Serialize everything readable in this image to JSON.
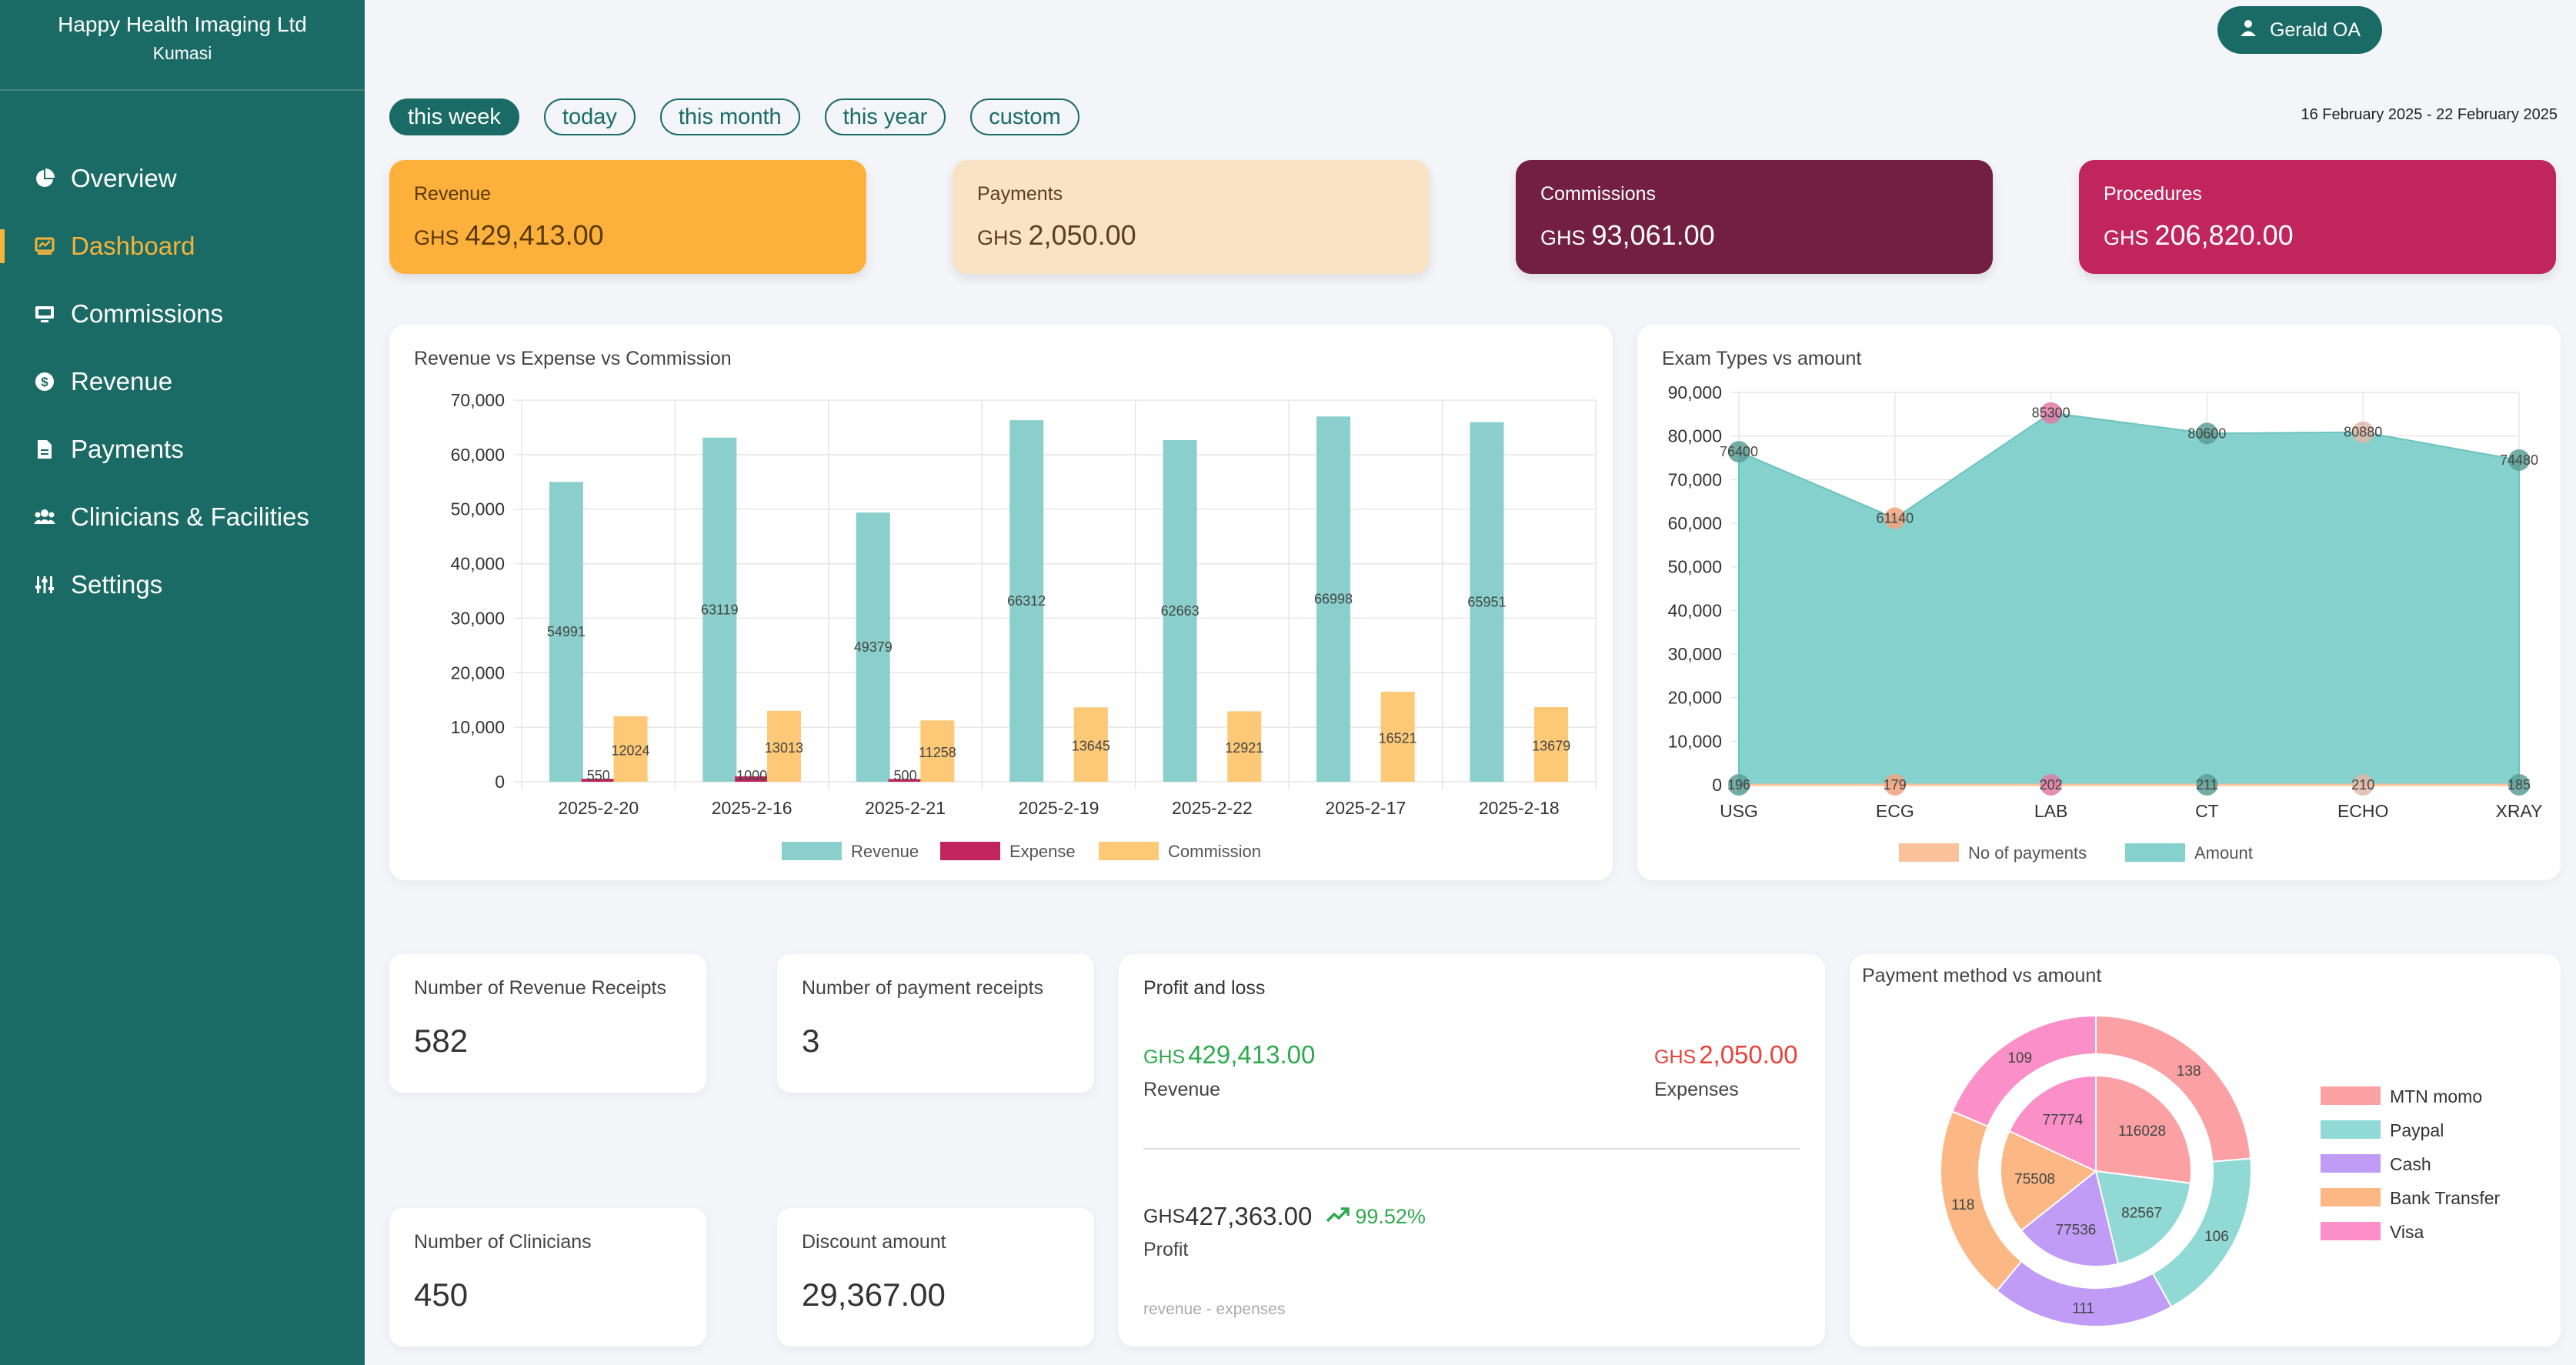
{
  "company": {
    "name": "Happy Health Imaging Ltd",
    "location": "Kumasi"
  },
  "user": {
    "name": "Gerald OA"
  },
  "nav": [
    {
      "label": "Overview",
      "icon": "pie-chart-icon"
    },
    {
      "label": "Dashboard",
      "icon": "dashboard-icon",
      "active": true
    },
    {
      "label": "Commissions",
      "icon": "monitor-icon"
    },
    {
      "label": "Revenue",
      "icon": "dollar-icon"
    },
    {
      "label": "Payments",
      "icon": "document-icon"
    },
    {
      "label": "Clinicians & Facilities",
      "icon": "users-icon"
    },
    {
      "label": "Settings",
      "icon": "sliders-icon"
    }
  ],
  "filters": [
    {
      "label": "this week",
      "active": true
    },
    {
      "label": "today"
    },
    {
      "label": "this month"
    },
    {
      "label": "this year"
    },
    {
      "label": "custom"
    }
  ],
  "date_range": "16 February 2025 - 22 February 2025",
  "stats": [
    {
      "label": "Revenue",
      "currency": "GHS",
      "value": "429,413.00",
      "bg": "#fdb13c",
      "fg": "#5a3a00"
    },
    {
      "label": "Payments",
      "currency": "GHS",
      "value": "2,050.00",
      "bg": "#fae3c4",
      "fg": "#5a4020"
    },
    {
      "label": "Commissions",
      "currency": "GHS",
      "value": "93,061.00",
      "bg": "#721f42",
      "fg": "#ffffff"
    },
    {
      "label": "Procedures",
      "currency": "GHS",
      "value": "206,820.00",
      "bg": "#c0265d",
      "fg": "#ffffff"
    }
  ],
  "small_cards": {
    "revenue_receipts": {
      "label": "Number of Revenue Receipts",
      "value": "582"
    },
    "payment_receipts": {
      "label": "Number of payment receipts",
      "value": "3"
    },
    "clinicians": {
      "label": "Number of Clinicians",
      "value": "450"
    },
    "discount": {
      "label": "Discount amount",
      "value": "29,367.00"
    }
  },
  "profit_loss": {
    "title": "Profit and loss",
    "revenue_currency": "GHS",
    "revenue_value": "429,413.00",
    "revenue_label": "Revenue",
    "expenses_currency": "GHS",
    "expenses_value": "2,050.00",
    "expenses_label": "Expenses",
    "profit_currency": "GHS",
    "profit_value": "427,363.00",
    "profit_pct": "99.52%",
    "profit_label": "Profit",
    "formula": "revenue - expenses"
  },
  "chart_data": [
    {
      "type": "bar",
      "title": "Revenue vs Expense vs Commission",
      "categories": [
        "2025-2-20",
        "2025-2-16",
        "2025-2-21",
        "2025-2-19",
        "2025-2-22",
        "2025-2-17",
        "2025-2-18"
      ],
      "series": [
        {
          "name": "Revenue",
          "color": "#8acfcb",
          "values": [
            54991,
            63119,
            49379,
            66312,
            62663,
            66998,
            65951
          ]
        },
        {
          "name": "Expense",
          "color": "#c0265d",
          "values": [
            550,
            1000,
            500,
            0,
            0,
            0,
            0
          ]
        },
        {
          "name": "Commission",
          "color": "#fdc977",
          "values": [
            12024,
            13013,
            11258,
            13645,
            12921,
            16521,
            13679
          ]
        }
      ],
      "expense_labels": [
        "550",
        "1000",
        "500",
        "",
        "",
        "",
        ""
      ],
      "ylim": [
        0,
        70000
      ],
      "yticks": [
        "0",
        "10,000",
        "20,000",
        "30,000",
        "40,000",
        "50,000",
        "60,000",
        "70,000"
      ],
      "legend": "bottom"
    },
    {
      "type": "area",
      "title": "Exam Types vs amount",
      "categories": [
        "USG",
        "ECG",
        "LAB",
        "CT",
        "ECHO",
        "XRAY"
      ],
      "series": [
        {
          "name": "No of payments",
          "color": "#fac19a",
          "values": [
            196,
            179,
            202,
            211,
            210,
            185
          ]
        },
        {
          "name": "Amount",
          "color": "#84d1ce",
          "values": [
            76400,
            61140,
            85300,
            80600,
            80880,
            74480
          ]
        }
      ],
      "point_colors": [
        "#5a9f97",
        "#f2a37c",
        "#e07aa5",
        "#5a9f97",
        "#e2b9a7",
        "#5a9f97"
      ],
      "ylim": [
        0,
        90000
      ],
      "yticks": [
        "0",
        "10,000",
        "20,000",
        "30,000",
        "40,000",
        "50,000",
        "60,000",
        "70,000",
        "80,000",
        "90,000"
      ],
      "legend": "bottom"
    },
    {
      "type": "pie",
      "title": "Payment method vs amount",
      "categories": [
        "MTN momo",
        "Paypal",
        "Cash",
        "Bank Transfer",
        "Visa"
      ],
      "colors": [
        "#fba0a3",
        "#90d9d5",
        "#c09cf7",
        "#fbb784",
        "#fb8fc8"
      ],
      "outer_values": [
        138,
        106,
        111,
        118,
        109
      ],
      "inner_values": [
        116028,
        82567,
        77536,
        75508,
        77774
      ],
      "legend": "right"
    }
  ]
}
